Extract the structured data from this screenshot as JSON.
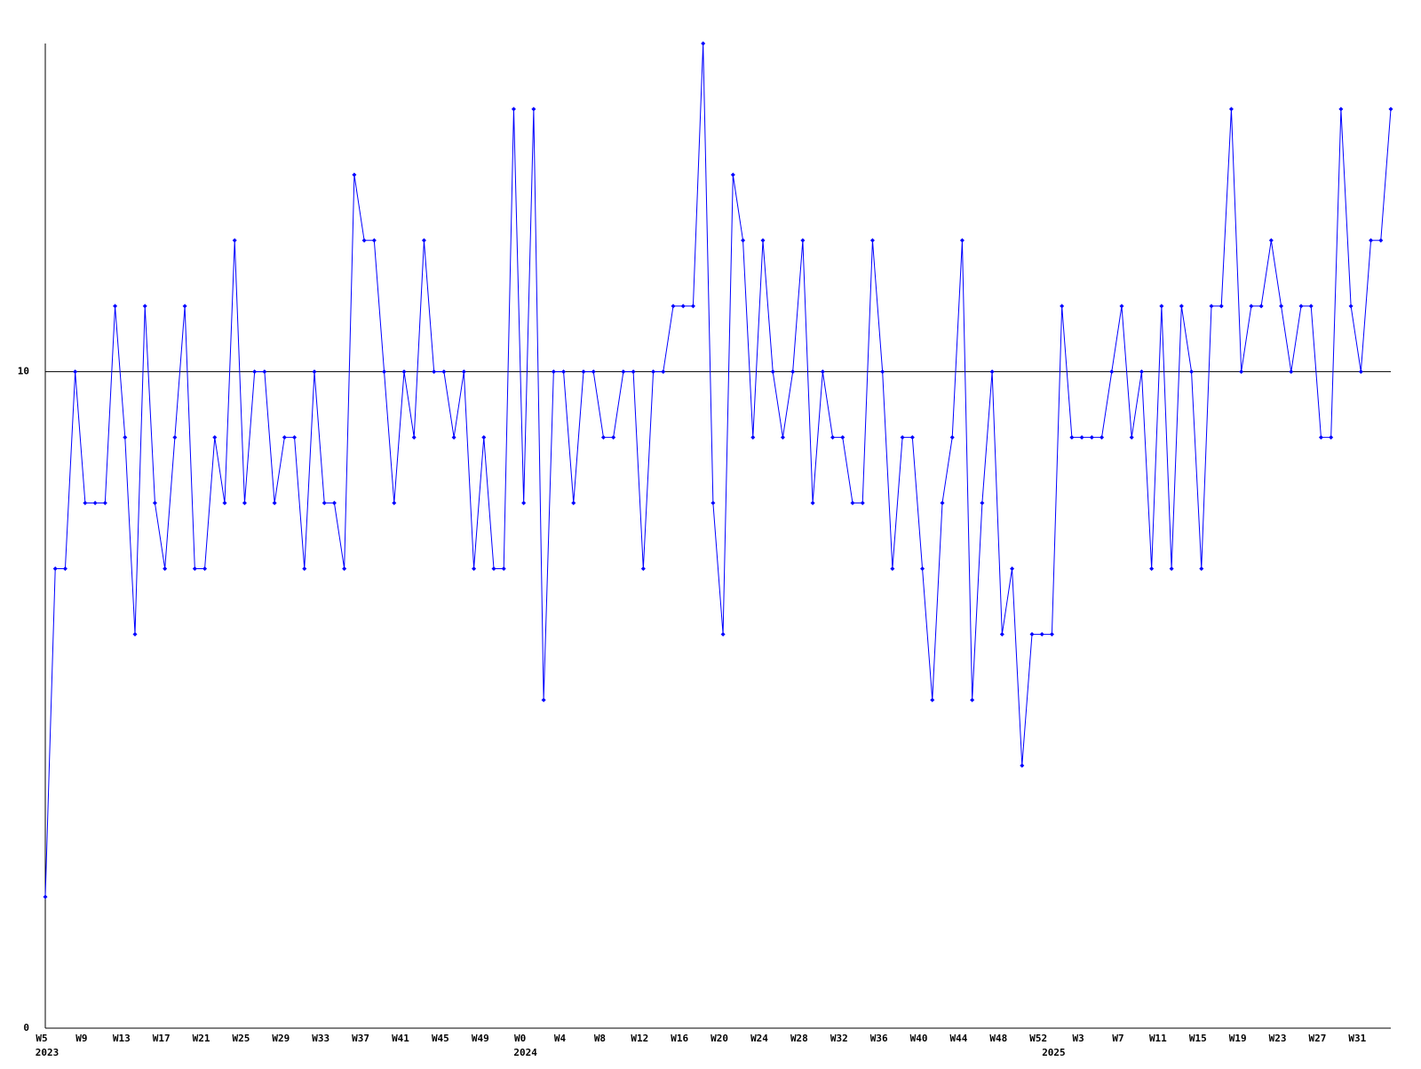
{
  "chart_data": {
    "type": "line",
    "categories": [
      "W5",
      null,
      null,
      null,
      "W9",
      null,
      null,
      null,
      "W13",
      null,
      null,
      null,
      "W17",
      null,
      null,
      null,
      "W21",
      null,
      null,
      null,
      "W25",
      null,
      null,
      null,
      "W29",
      null,
      null,
      null,
      "W33",
      null,
      null,
      null,
      "W37",
      null,
      null,
      null,
      "W41",
      null,
      null,
      null,
      "W45",
      null,
      null,
      null,
      "W49",
      null,
      null,
      null,
      "W0",
      null,
      null,
      null,
      "W4",
      null,
      null,
      null,
      "W8",
      null,
      null,
      null,
      "W12",
      null,
      null,
      null,
      "W16",
      null,
      null,
      null,
      "W20",
      null,
      null,
      null,
      "W24",
      null,
      null,
      null,
      "W28",
      null,
      null,
      null,
      "W32",
      null,
      null,
      null,
      "W36",
      null,
      null,
      null,
      "W40",
      null,
      null,
      null,
      "W44",
      null,
      null,
      null,
      "W48",
      null,
      null,
      null,
      "W52",
      null,
      null,
      null,
      "W3",
      null,
      null,
      null,
      "W7",
      null,
      null,
      null,
      "W11",
      null,
      null,
      null,
      "W15",
      null,
      null,
      null,
      "W19",
      null,
      null,
      null,
      "W23",
      null,
      null,
      null,
      "W27",
      null,
      null,
      null,
      "W31",
      null,
      null,
      null
    ],
    "x_groups": [
      {
        "label": "2023",
        "start": 0
      },
      {
        "label": "2024",
        "start": 48
      },
      {
        "label": "2025",
        "start": 101
      }
    ],
    "values": [
      2,
      7,
      7,
      10,
      8,
      8,
      8,
      11,
      9,
      6,
      11,
      8,
      7,
      9,
      11,
      7,
      7,
      9,
      8,
      12,
      8,
      10,
      10,
      8,
      9,
      9,
      7,
      10,
      8,
      8,
      7,
      13,
      12,
      12,
      10,
      8,
      10,
      9,
      12,
      10,
      10,
      9,
      10,
      7,
      9,
      7,
      7,
      14,
      8,
      14,
      5,
      10,
      10,
      8,
      10,
      10,
      9,
      9,
      10,
      10,
      7,
      10,
      10,
      11,
      11,
      11,
      15,
      8,
      6,
      13,
      12,
      9,
      12,
      10,
      9,
      10,
      12,
      8,
      10,
      9,
      9,
      8,
      8,
      12,
      10,
      7,
      9,
      9,
      7,
      5,
      8,
      9,
      12,
      5,
      8,
      10,
      6,
      7,
      4,
      6,
      6,
      6,
      11,
      9,
      9,
      9,
      9,
      10,
      11,
      9,
      10,
      7,
      11,
      7,
      11,
      10,
      7,
      11,
      11,
      14,
      10,
      11,
      11,
      12,
      11,
      10,
      11,
      11,
      9,
      9,
      14,
      11,
      10,
      12,
      12,
      14
    ],
    "color": "#0000ff",
    "ylim": [
      0,
      15
    ],
    "yticks": [
      0,
      10
    ],
    "grid": true
  }
}
